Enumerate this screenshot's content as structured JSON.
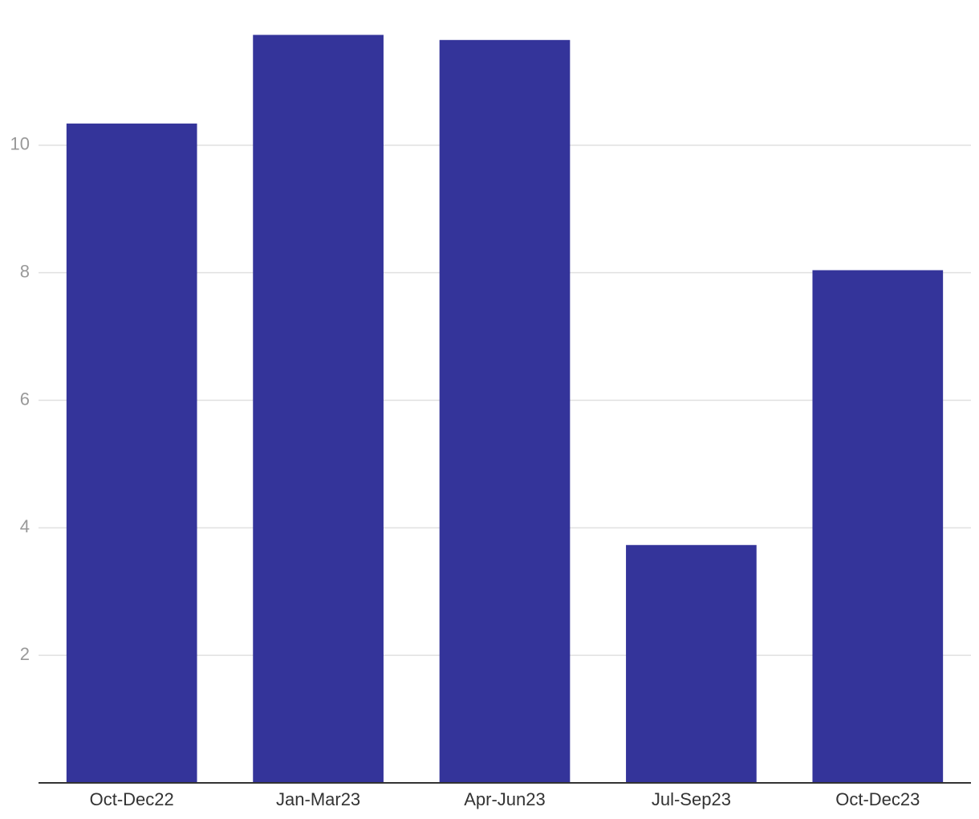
{
  "chart_data": {
    "type": "bar",
    "categories": [
      "Oct-Dec22",
      "Jan-Mar23",
      "Apr-Jun23",
      "Jul-Sep23",
      "Oct-Dec23"
    ],
    "values": [
      10.34,
      11.73,
      11.65,
      3.73,
      8.04
    ],
    "color": "#34349a",
    "ylim": [
      0,
      12
    ],
    "yticks": [
      2,
      4,
      6,
      8,
      10
    ],
    "grid": true
  }
}
